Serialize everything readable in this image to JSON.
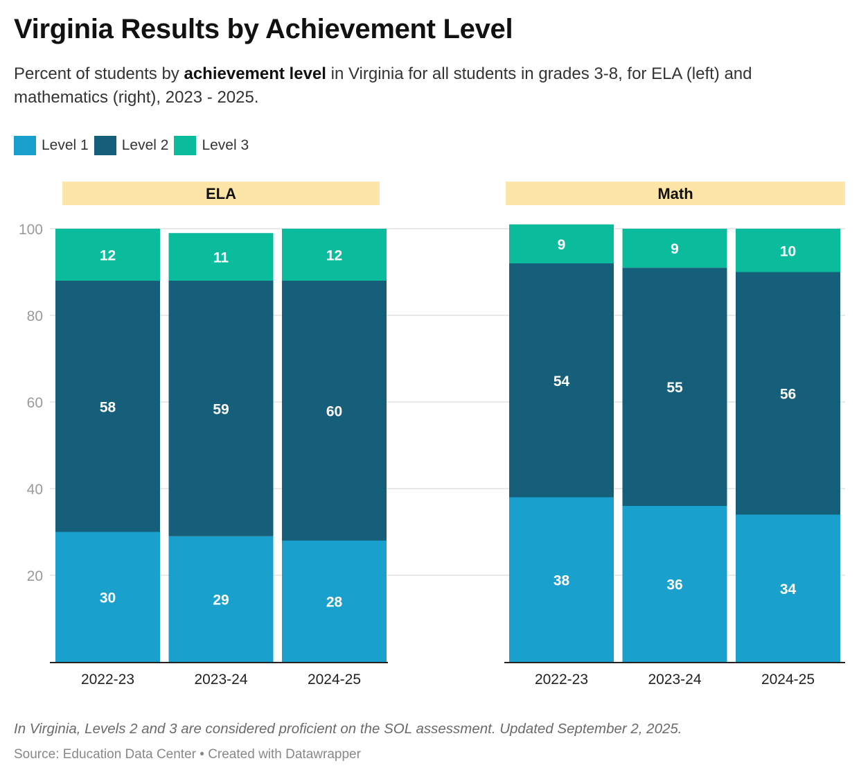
{
  "header": {
    "title": "Virginia Results by Achievement Level",
    "subtitle_pre": "Percent of students by ",
    "subtitle_bold": "achievement level",
    "subtitle_post": " in Virginia for all students in grades 3-8, for ELA (left) and mathematics (right), 2023 - 2025."
  },
  "legend": [
    {
      "label": "Level 1",
      "color": "#1aa0cd"
    },
    {
      "label": "Level 2",
      "color": "#165f7a"
    },
    {
      "label": "Level 3",
      "color": "#0bbc9c"
    }
  ],
  "chart_data": {
    "type": "bar",
    "stacked": true,
    "ylim": [
      0,
      100
    ],
    "yticks": [
      20,
      40,
      60,
      80,
      100
    ],
    "grid": true,
    "panel_color": "#fde5a8",
    "panels": [
      {
        "title": "ELA",
        "categories": [
          "2022-23",
          "2023-24",
          "2024-25"
        ],
        "series": [
          {
            "name": "Level 1",
            "values": [
              30,
              29,
              28
            ]
          },
          {
            "name": "Level 2",
            "values": [
              58,
              59,
              60
            ]
          },
          {
            "name": "Level 3",
            "values": [
              12,
              11,
              12
            ]
          }
        ]
      },
      {
        "title": "Math",
        "categories": [
          "2022-23",
          "2023-24",
          "2024-25"
        ],
        "series": [
          {
            "name": "Level 1",
            "values": [
              38,
              36,
              34
            ]
          },
          {
            "name": "Level 2",
            "values": [
              54,
              55,
              56
            ]
          },
          {
            "name": "Level 3",
            "values": [
              9,
              9,
              10
            ]
          }
        ]
      }
    ]
  },
  "footer": {
    "note": "In Virginia, Levels 2 and 3 are considered proficient on the SOL assessment. Updated September 2, 2025.",
    "source": "Source: Education Data Center • Created with Datawrapper"
  }
}
